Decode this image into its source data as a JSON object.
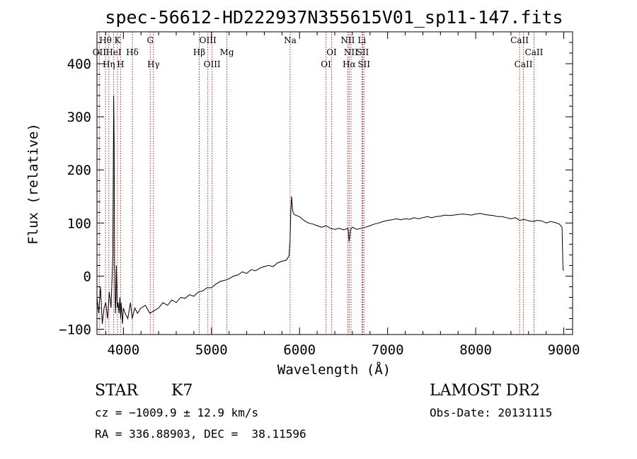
{
  "chart_data": {
    "type": "line",
    "title": "spec-56612-HD222937N355615V01_sp11-147.fits",
    "xlabel": "Wavelength (Å)",
    "ylabel": "Flux (relative)",
    "xlim": [
      3700,
      9100
    ],
    "ylim": [
      -110,
      460
    ],
    "x_ticks": [
      4000,
      5000,
      6000,
      7000,
      8000,
      9000
    ],
    "y_ticks": [
      -100,
      0,
      100,
      200,
      300,
      400
    ],
    "line_color": "#000000",
    "marker_color": "#b22222",
    "grid": false,
    "series": [
      {
        "x": [
          3700,
          3720,
          3740,
          3760,
          3780,
          3800,
          3820,
          3840,
          3860,
          3880,
          3890,
          3895,
          3900,
          3905,
          3910,
          3915,
          3920,
          3930,
          3940,
          3950,
          3960,
          3968,
          3975,
          3990,
          4000,
          4020,
          4050,
          4080,
          4100,
          4130,
          4160,
          4200,
          4250,
          4300,
          4350,
          4400,
          4450,
          4500,
          4550,
          4600,
          4650,
          4700,
          4750,
          4800,
          4850,
          4900,
          4950,
          5000,
          5050,
          5100,
          5150,
          5200,
          5250,
          5300,
          5350,
          5400,
          5450,
          5500,
          5550,
          5600,
          5650,
          5700,
          5750,
          5800,
          5850,
          5880,
          5893,
          5900,
          5910,
          5920,
          5930,
          5950,
          6000,
          6050,
          6100,
          6150,
          6200,
          6250,
          6300,
          6350,
          6400,
          6450,
          6500,
          6550,
          6563,
          6580,
          6600,
          6650,
          6700,
          6750,
          6800,
          6850,
          6900,
          6950,
          7000,
          7050,
          7100,
          7150,
          7200,
          7250,
          7300,
          7350,
          7400,
          7450,
          7500,
          7550,
          7600,
          7650,
          7700,
          7750,
          7800,
          7850,
          7900,
          7950,
          8000,
          8050,
          8100,
          8150,
          8200,
          8250,
          8300,
          8350,
          8400,
          8450,
          8500,
          8550,
          8600,
          8650,
          8700,
          8750,
          8800,
          8850,
          8900,
          8950,
          8980,
          8990,
          8995
        ],
        "y": [
          -40,
          -70,
          -20,
          -90,
          -60,
          -50,
          -80,
          -30,
          -60,
          40,
          340,
          250,
          20,
          -30,
          -70,
          -40,
          20,
          -60,
          -50,
          -70,
          -40,
          -80,
          -50,
          -90,
          -60,
          -70,
          -80,
          -50,
          -80,
          -60,
          -70,
          -60,
          -55,
          -70,
          -65,
          -60,
          -50,
          -55,
          -45,
          -50,
          -40,
          -42,
          -35,
          -38,
          -30,
          -28,
          -22,
          -22,
          -15,
          -10,
          -8,
          -5,
          0,
          2,
          8,
          5,
          12,
          10,
          15,
          18,
          20,
          18,
          25,
          28,
          30,
          38,
          70,
          120,
          150,
          125,
          118,
          115,
          112,
          105,
          100,
          98,
          95,
          92,
          95,
          90,
          88,
          90,
          87,
          90,
          65,
          88,
          92,
          88,
          90,
          92,
          95,
          98,
          100,
          103,
          105,
          106,
          108,
          106,
          108,
          107,
          110,
          108,
          110,
          112,
          110,
          112,
          113,
          115,
          114,
          115,
          116,
          117,
          116,
          115,
          117,
          118,
          116,
          115,
          114,
          112,
          112,
          110,
          108,
          110,
          105,
          107,
          104,
          103,
          105,
          104,
          100,
          103,
          101,
          98,
          92,
          20,
          10
        ]
      }
    ],
    "annotations": [
      {
        "label": "Hθ",
        "x": 3797,
        "row": 1
      },
      {
        "label": "OII",
        "x": 3727,
        "row": 2
      },
      {
        "label": "Hη",
        "x": 3835,
        "row": 3
      },
      {
        "label": "HeI",
        "x": 3889,
        "row": 2
      },
      {
        "label": "K",
        "x": 3933,
        "row": 1
      },
      {
        "label": "H",
        "x": 3968,
        "row": 3
      },
      {
        "label": "Hδ",
        "x": 4102,
        "row": 2
      },
      {
        "label": "G",
        "x": 4305,
        "row": 1
      },
      {
        "label": "Hγ",
        "x": 4341,
        "row": 3
      },
      {
        "label": "OIII",
        "x": 4959,
        "row": 1
      },
      {
        "label": "Hβ",
        "x": 4861,
        "row": 2
      },
      {
        "label": "OIII",
        "x": 5007,
        "row": 3
      },
      {
        "label": "Mg",
        "x": 5175,
        "row": 2
      },
      {
        "label": "Na",
        "x": 5893,
        "row": 1
      },
      {
        "label": "OI",
        "x": 6364,
        "row": 2
      },
      {
        "label": "OI",
        "x": 6300,
        "row": 3
      },
      {
        "label": "NII",
        "x": 6548,
        "row": 1
      },
      {
        "label": "NII",
        "x": 6584,
        "row": 2
      },
      {
        "label": "Hα",
        "x": 6563,
        "row": 3
      },
      {
        "label": "Li",
        "x": 6708,
        "row": 1
      },
      {
        "label": "SII",
        "x": 6717,
        "row": 2
      },
      {
        "label": "SII",
        "x": 6731,
        "row": 3
      },
      {
        "label": "CaII",
        "x": 8498,
        "row": 1
      },
      {
        "label": "CaII",
        "x": 8662,
        "row": 2
      },
      {
        "label": "CaII",
        "x": 8542,
        "row": 3
      }
    ]
  },
  "info": {
    "object_class": "STAR",
    "subclass": "K7",
    "survey": "LAMOST DR2",
    "redshift_text": "cz = −1009.9 ± 12.9 km/s",
    "obs_date_text": "Obs-Date: 20131115",
    "coords_text": "RA = 336.88903, DEC =  38.11596"
  }
}
